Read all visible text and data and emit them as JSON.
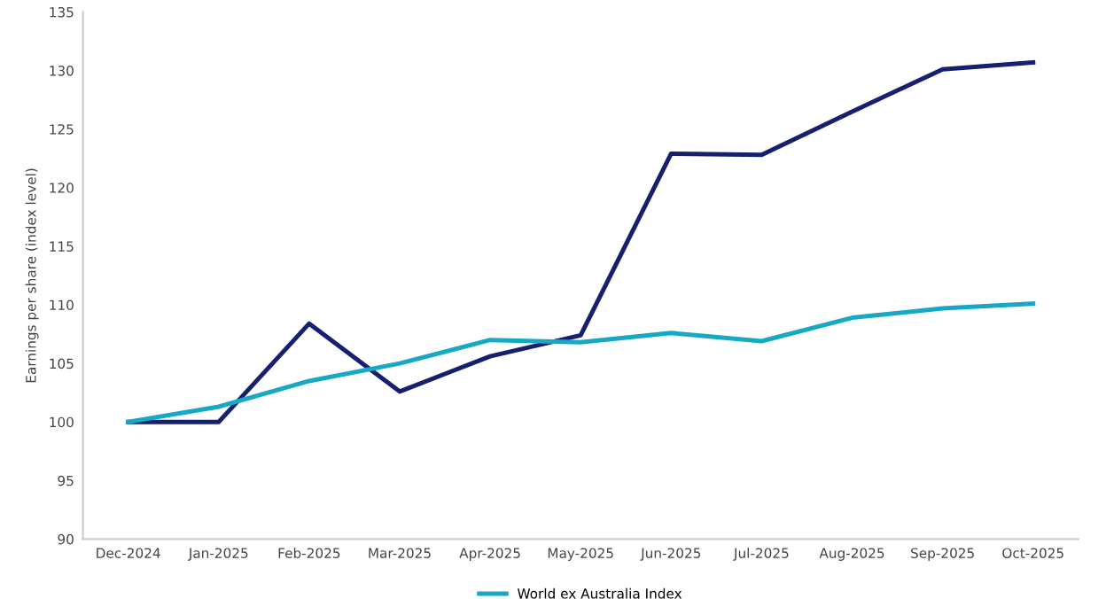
{
  "chart_data": {
    "type": "line",
    "ylabel": "Earnings per share (index level)",
    "categories": [
      "Dec-2024",
      "Jan-2025",
      "Feb-2025",
      "Mar-2025",
      "Apr-2025",
      "May-2025",
      "Jun-2025",
      "Jul-2025",
      "Aug-2025",
      "Sep-2025",
      "Oct-2025"
    ],
    "series": [
      {
        "color": "#16206e",
        "values": [
          100,
          100,
          108.4,
          102.6,
          105.6,
          107.4,
          122.9,
          122.8,
          126.5,
          130.1,
          130.7
        ]
      },
      {
        "name": "World ex Australia Index",
        "color": "#17a9c4",
        "values": [
          100,
          101.3,
          103.5,
          105.0,
          107.0,
          106.8,
          107.6,
          106.9,
          108.9,
          109.7,
          110.1
        ]
      }
    ],
    "ylim": [
      90,
      135
    ],
    "yticks": [
      90,
      95,
      100,
      105,
      110,
      115,
      120,
      125,
      130,
      135
    ],
    "grid": false,
    "legend": "bottom",
    "marker": "none",
    "line_style": "solid"
  }
}
